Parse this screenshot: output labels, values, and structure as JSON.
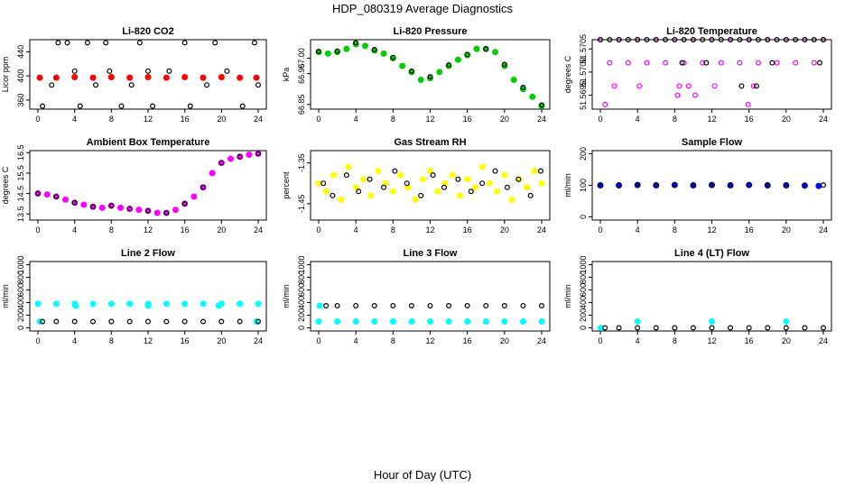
{
  "title": "HDP_080319  Average Diagnostics",
  "xlabel": "Hour of Day (UTC)",
  "chart_data": [
    {
      "type": "scatter",
      "title": "Li-820 CO2",
      "ylabel": "Licor ppm",
      "xlim": [
        0,
        24
      ],
      "xticks": [
        0,
        4,
        8,
        12,
        16,
        20,
        24
      ],
      "ylim": [
        345,
        460
      ],
      "yticks": [
        360,
        400,
        440
      ],
      "yticklabels": [
        "360",
        "400",
        "440"
      ],
      "series": [
        {
          "name": "red",
          "color": "#ff0000",
          "shape": "filled",
          "x": [
            0.2,
            2,
            4,
            6,
            8,
            10,
            12,
            14,
            16,
            18,
            20,
            22,
            23.8
          ],
          "y": [
            397,
            397,
            398,
            397,
            398,
            397,
            398,
            397,
            398,
            397,
            398,
            397,
            397
          ]
        },
        {
          "name": "black",
          "color": "#000000",
          "shape": "open",
          "x": [
            0.5,
            1.5,
            2.2,
            3.2,
            4.0,
            4.6,
            5.4,
            6.3,
            7.4,
            7.8,
            9.1,
            10.2,
            11.1,
            12.0,
            12.5,
            14.3,
            16.0,
            16.6,
            18.4,
            19.3,
            20.6,
            22.3,
            23.6,
            24.0
          ],
          "y": [
            350,
            385,
            455,
            455,
            408,
            350,
            455,
            385,
            455,
            408,
            350,
            385,
            455,
            408,
            350,
            408,
            455,
            350,
            385,
            455,
            408,
            350,
            455,
            385
          ]
        }
      ]
    },
    {
      "type": "scatter",
      "title": "Li-820 Pressure",
      "ylabel": "kPa",
      "xlim": [
        0,
        24
      ],
      "xticks": [
        0,
        4,
        8,
        12,
        16,
        20,
        24
      ],
      "ylim": [
        66.835,
        67.06
      ],
      "yticks": [
        66.85,
        66.95,
        67.0
      ],
      "yticklabels": [
        "66.85",
        "66.95",
        "67.00"
      ],
      "series": [
        {
          "name": "green",
          "color": "#00cc00",
          "shape": "filled",
          "x": [
            0,
            1,
            2,
            3,
            4,
            5,
            6,
            7,
            8,
            9,
            10,
            11,
            12,
            13,
            14,
            15,
            16,
            17,
            18,
            19,
            20,
            21,
            22,
            23,
            24
          ],
          "y": [
            67.02,
            67.015,
            67.02,
            67.03,
            67.045,
            67.04,
            67.025,
            67.015,
            67.0,
            66.975,
            66.955,
            66.93,
            66.935,
            66.955,
            66.975,
            66.995,
            67.01,
            67.03,
            67.03,
            67.02,
            66.975,
            66.93,
            66.9,
            66.875,
            66.845
          ]
        },
        {
          "name": "black",
          "color": "#000000",
          "shape": "open",
          "x": [
            0,
            2,
            4,
            6,
            8,
            10,
            12,
            14,
            16,
            18,
            20,
            22,
            24
          ],
          "y": [
            67.022,
            67.023,
            67.05,
            67.028,
            67.002,
            66.958,
            66.94,
            66.978,
            67.012,
            67.03,
            66.98,
            66.905,
            66.848
          ]
        }
      ]
    },
    {
      "type": "scatter",
      "title": "Li-820 Temperature",
      "ylabel": "degrees C",
      "xlim": [
        0,
        24
      ],
      "xticks": [
        0,
        4,
        8,
        12,
        16,
        20,
        24
      ],
      "ylim": [
        51.5692,
        51.5707
      ],
      "yticks": [
        51.5695,
        51.57,
        51.5705
      ],
      "yticklabels": [
        "51.5695",
        "51.5700",
        "51.5705"
      ],
      "series": [
        {
          "name": "magenta",
          "color": "#ff00ff",
          "shape": "open",
          "x": [
            0,
            2,
            4,
            6,
            8,
            10,
            12,
            14,
            16,
            18,
            20,
            22,
            24,
            1,
            3,
            5,
            7,
            9,
            11,
            13,
            15,
            17,
            19,
            21,
            23,
            4.2,
            8.5,
            9.5,
            12.3,
            16.5,
            1.5,
            8.3,
            10.2,
            15.9,
            0.5
          ],
          "y": [
            51.5707,
            51.5707,
            51.5707,
            51.5707,
            51.5707,
            51.5707,
            51.5707,
            51.5707,
            51.5707,
            51.5707,
            51.5707,
            51.5707,
            51.5707,
            51.5702,
            51.5702,
            51.5702,
            51.5702,
            51.5702,
            51.5702,
            51.5702,
            51.5702,
            51.5702,
            51.5702,
            51.5702,
            51.5702,
            51.5697,
            51.5697,
            51.5697,
            51.5697,
            51.5697,
            51.5697,
            51.5695,
            51.5695,
            51.5693,
            51.5693
          ]
        },
        {
          "name": "black",
          "color": "#000000",
          "shape": "open",
          "x": [
            0,
            1,
            2,
            3,
            4,
            5,
            6,
            7,
            8,
            9,
            10,
            11,
            12,
            13,
            14,
            15,
            16,
            17,
            18,
            19,
            20,
            21,
            22,
            23,
            24,
            8.8,
            11.4,
            18.5,
            23.6,
            15.2,
            16.8
          ],
          "y": [
            51.5707,
            51.5707,
            51.5707,
            51.5707,
            51.5707,
            51.5707,
            51.5707,
            51.5707,
            51.5707,
            51.5707,
            51.5707,
            51.5707,
            51.5707,
            51.5707,
            51.5707,
            51.5707,
            51.5707,
            51.5707,
            51.5707,
            51.5707,
            51.5707,
            51.5707,
            51.5707,
            51.5707,
            51.5707,
            51.5702,
            51.5702,
            51.5702,
            51.5702,
            51.5697,
            51.5697
          ]
        }
      ]
    },
    {
      "type": "scatter",
      "title": "Ambient Box Temperature",
      "ylabel": "degrees C",
      "xlim": [
        0,
        24
      ],
      "xticks": [
        0,
        4,
        8,
        12,
        16,
        20,
        24
      ],
      "ylim": [
        13.2,
        16.6
      ],
      "yticks": [
        13.5,
        14.5,
        15.5,
        16.5
      ],
      "yticklabels": [
        "13.5",
        "14.5",
        "15.5",
        "16.5"
      ],
      "series": [
        {
          "name": "magenta",
          "color": "#ff00ff",
          "shape": "filled",
          "x": [
            0,
            1,
            2,
            3,
            4,
            5,
            6,
            7,
            8,
            9,
            10,
            11,
            12,
            13,
            14,
            15,
            16,
            17,
            18,
            19,
            20,
            21,
            22,
            23,
            24
          ],
          "y": [
            14.5,
            14.45,
            14.35,
            14.2,
            14.05,
            13.95,
            13.85,
            13.8,
            13.9,
            13.8,
            13.75,
            13.7,
            13.65,
            13.55,
            13.55,
            13.7,
            14.0,
            14.35,
            14.8,
            15.5,
            16.0,
            16.2,
            16.3,
            16.4,
            16.45
          ]
        },
        {
          "name": "black",
          "color": "#000000",
          "shape": "open",
          "x": [
            0,
            2,
            4,
            6,
            8,
            10,
            12,
            14,
            16,
            18,
            20,
            22,
            24
          ],
          "y": [
            14.5,
            14.35,
            14.05,
            13.85,
            13.9,
            13.75,
            13.65,
            13.55,
            14.0,
            14.8,
            16.0,
            16.3,
            16.45
          ]
        }
      ]
    },
    {
      "type": "scatter",
      "title": "Gas Stream RH",
      "ylabel": "percent",
      "xlim": [
        0,
        24
      ],
      "xticks": [
        0,
        4,
        8,
        12,
        16,
        20,
        24
      ],
      "ylim": [
        -1.49,
        -1.32
      ],
      "yticks": [
        -1.45,
        -1.35
      ],
      "yticklabels": [
        "-1.45",
        "-1.35"
      ],
      "series": [
        {
          "name": "yellow",
          "color": "#ffff00",
          "shape": "filled",
          "x": [
            0,
            0.8,
            1.6,
            2.4,
            3.2,
            4.0,
            4.8,
            5.6,
            6.4,
            7.2,
            8.0,
            8.8,
            9.6,
            10.4,
            11.2,
            12.0,
            12.8,
            13.6,
            14.4,
            15.2,
            16.0,
            16.8,
            17.6,
            18.4,
            19.2,
            20.0,
            20.8,
            21.6,
            22.4,
            23.2,
            24.0
          ],
          "y": [
            -1.4,
            -1.42,
            -1.38,
            -1.44,
            -1.36,
            -1.41,
            -1.39,
            -1.43,
            -1.37,
            -1.4,
            -1.42,
            -1.38,
            -1.41,
            -1.44,
            -1.39,
            -1.37,
            -1.42,
            -1.4,
            -1.38,
            -1.43,
            -1.39,
            -1.41,
            -1.36,
            -1.4,
            -1.42,
            -1.38,
            -1.44,
            -1.39,
            -1.41,
            -1.37,
            -1.4
          ]
        },
        {
          "name": "black",
          "color": "#000000",
          "shape": "open",
          "x": [
            0.5,
            1.5,
            3.0,
            4.3,
            5.5,
            7.0,
            8.2,
            9.5,
            11.0,
            12.3,
            13.5,
            15.0,
            16.4,
            17.6,
            19.0,
            20.3,
            21.5,
            22.8,
            23.9
          ],
          "y": [
            -1.4,
            -1.43,
            -1.38,
            -1.42,
            -1.39,
            -1.41,
            -1.37,
            -1.4,
            -1.43,
            -1.38,
            -1.41,
            -1.39,
            -1.42,
            -1.4,
            -1.37,
            -1.41,
            -1.39,
            -1.43,
            -1.37
          ]
        }
      ]
    },
    {
      "type": "scatter",
      "title": "Sample Flow",
      "ylabel": "ml/min",
      "xlim": [
        0,
        24
      ],
      "xticks": [
        0,
        4,
        8,
        12,
        16,
        20,
        24
      ],
      "ylim": [
        -10,
        210
      ],
      "yticks": [
        0,
        100,
        200
      ],
      "yticklabels": [
        "0",
        "100",
        "200"
      ],
      "series": [
        {
          "name": "blue",
          "color": "#0000ff",
          "shape": "filled",
          "x": [
            0,
            2,
            4,
            6,
            8,
            10,
            12,
            14,
            16,
            18,
            20,
            22,
            23.5
          ],
          "y": [
            100,
            100,
            101,
            100,
            101,
            100,
            101,
            100,
            101,
            100,
            100,
            99,
            98
          ]
        },
        {
          "name": "black",
          "color": "#000000",
          "shape": "open",
          "x": [
            0,
            2,
            4,
            6,
            8,
            10,
            12,
            14,
            16,
            18,
            20,
            22,
            24
          ],
          "y": [
            100,
            101,
            101,
            101,
            101,
            101,
            101,
            101,
            101,
            101,
            101,
            100,
            101
          ]
        }
      ]
    },
    {
      "type": "scatter",
      "title": "Line 2 Flow",
      "ylabel": "ml/min",
      "xlim": [
        0,
        24
      ],
      "xticks": [
        0,
        4,
        8,
        12,
        16,
        20,
        24
      ],
      "ylim": [
        -50,
        1050
      ],
      "yticks": [
        0,
        200,
        400,
        600,
        800,
        1000
      ],
      "yticklabels": [
        "0",
        "200",
        "400",
        "600",
        "800",
        "1000"
      ],
      "series": [
        {
          "name": "cyan",
          "color": "#00ffff",
          "shape": "filled",
          "x": [
            0,
            2,
            4,
            6,
            8,
            10,
            12,
            14,
            16,
            18,
            20,
            22,
            24,
            0.2,
            4.1,
            12.0,
            19.7,
            23.8
          ],
          "y": [
            380,
            380,
            380,
            380,
            380,
            380,
            380,
            380,
            380,
            380,
            380,
            380,
            380,
            100,
            350,
            350,
            350,
            100
          ]
        },
        {
          "name": "black",
          "color": "#000000",
          "shape": "open",
          "x": [
            0.5,
            2,
            4,
            6,
            8,
            10,
            12,
            14,
            16,
            18,
            20,
            22,
            24
          ],
          "y": [
            100,
            100,
            100,
            100,
            100,
            100,
            100,
            100,
            100,
            100,
            100,
            100,
            100
          ]
        }
      ]
    },
    {
      "type": "scatter",
      "title": "Line 3 Flow",
      "ylabel": "ml/min",
      "xlim": [
        0,
        24
      ],
      "xticks": [
        0,
        4,
        8,
        12,
        16,
        20,
        24
      ],
      "ylim": [
        -50,
        1050
      ],
      "yticks": [
        0,
        200,
        400,
        600,
        800,
        1000
      ],
      "yticklabels": [
        "0",
        "200",
        "400",
        "600",
        "800",
        "1000"
      ],
      "series": [
        {
          "name": "cyan",
          "color": "#00ffff",
          "shape": "filled",
          "x": [
            0,
            2,
            4,
            6,
            8,
            10,
            12,
            14,
            16,
            18,
            20,
            22,
            24,
            0.1
          ],
          "y": [
            100,
            100,
            100,
            100,
            100,
            100,
            100,
            100,
            100,
            100,
            100,
            100,
            100,
            350
          ]
        },
        {
          "name": "black",
          "color": "#000000",
          "shape": "open",
          "x": [
            0.8,
            2,
            4,
            6,
            8,
            10,
            12,
            14,
            16,
            18,
            20,
            22,
            24
          ],
          "y": [
            350,
            350,
            350,
            350,
            350,
            350,
            350,
            350,
            350,
            350,
            350,
            350,
            350
          ]
        }
      ]
    },
    {
      "type": "scatter",
      "title": "Line 4 (LT) Flow",
      "ylabel": "ml/min",
      "xlim": [
        0,
        24
      ],
      "xticks": [
        0,
        4,
        8,
        12,
        16,
        20,
        24
      ],
      "ylim": [
        -50,
        1050
      ],
      "yticks": [
        0,
        200,
        400,
        600,
        800,
        1000
      ],
      "yticklabels": [
        "0",
        "200",
        "400",
        "600",
        "800",
        "1000"
      ],
      "series": [
        {
          "name": "cyan",
          "color": "#00ffff",
          "shape": "filled",
          "x": [
            0.05,
            4.0,
            12.0,
            20.0
          ],
          "y": [
            0,
            100,
            100,
            100
          ]
        },
        {
          "name": "black",
          "color": "#000000",
          "shape": "open",
          "x": [
            0.5,
            2,
            4,
            6,
            8,
            10,
            12,
            14,
            16,
            18,
            20,
            22,
            24
          ],
          "y": [
            0,
            0,
            0,
            0,
            0,
            0,
            0,
            0,
            0,
            0,
            0,
            0,
            0
          ]
        }
      ]
    }
  ]
}
